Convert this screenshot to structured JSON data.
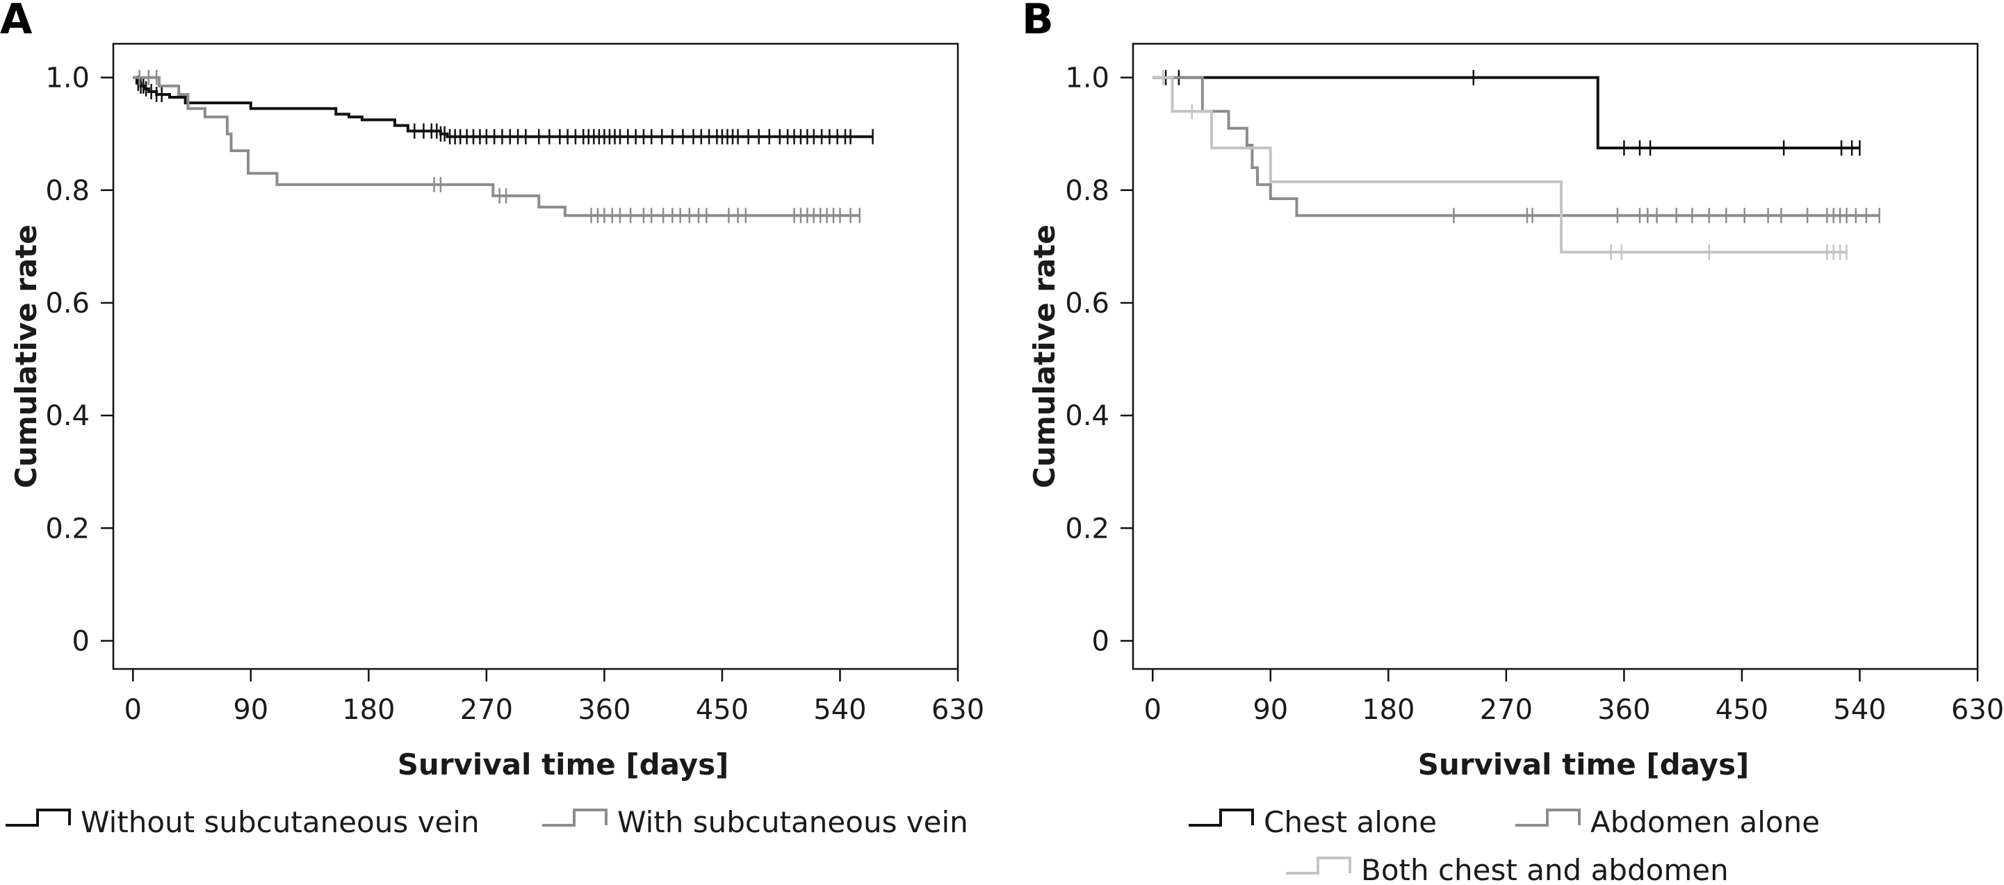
{
  "chart_data": [
    {
      "type": "line",
      "panel_label": "A",
      "xlabel": "Survival time [days]",
      "ylabel": "Cumulative rate",
      "xlim": [
        -15,
        630
      ],
      "ylim": [
        -0.05,
        1.06
      ],
      "xticks": [
        0,
        90,
        180,
        270,
        360,
        450,
        540,
        630
      ],
      "yticks": [
        0,
        0.2,
        0.4,
        0.6,
        0.8,
        1.0
      ],
      "ytick_labels": [
        "0",
        "0.2",
        "0.4",
        "0.6",
        "0.8",
        "1.0"
      ],
      "grid": false,
      "legend": "bottom",
      "series": [
        {
          "name": "Without subcutaneous vein",
          "color": "#111111",
          "steps": [
            [
              0,
              1.0
            ],
            [
              3,
              0.99
            ],
            [
              6,
              0.985
            ],
            [
              9,
              0.98
            ],
            [
              12,
              0.975
            ],
            [
              18,
              0.97
            ],
            [
              28,
              0.965
            ],
            [
              40,
              0.955
            ],
            [
              90,
              0.945
            ],
            [
              155,
              0.935
            ],
            [
              165,
              0.93
            ],
            [
              175,
              0.925
            ],
            [
              200,
              0.915
            ],
            [
              210,
              0.905
            ],
            [
              235,
              0.9
            ],
            [
              240,
              0.895
            ],
            [
              565,
              0.895
            ]
          ],
          "censors": [
            4,
            6,
            8,
            10,
            14,
            18,
            22,
            215,
            222,
            228,
            232,
            235,
            238,
            242,
            246,
            250,
            255,
            260,
            265,
            270,
            276,
            282,
            288,
            294,
            300,
            310,
            318,
            326,
            332,
            338,
            344,
            348,
            352,
            356,
            360,
            364,
            368,
            372,
            378,
            384,
            390,
            396,
            404,
            412,
            420,
            428,
            434,
            440,
            446,
            450,
            454,
            458,
            462,
            470,
            478,
            486,
            494,
            500,
            505,
            510,
            515,
            520,
            526,
            532,
            538,
            544,
            548,
            565
          ]
        },
        {
          "name": "With subcutaneous vein",
          "color": "#8c8c8c",
          "steps": [
            [
              0,
              1.0
            ],
            [
              20,
              0.985
            ],
            [
              35,
              0.97
            ],
            [
              42,
              0.945
            ],
            [
              55,
              0.93
            ],
            [
              72,
              0.9
            ],
            [
              75,
              0.87
            ],
            [
              88,
              0.83
            ],
            [
              110,
              0.81
            ],
            [
              275,
              0.79
            ],
            [
              310,
              0.77
            ],
            [
              330,
              0.755
            ],
            [
              555,
              0.755
            ]
          ],
          "censors": [
            5,
            12,
            18,
            230,
            235,
            280,
            285,
            350,
            355,
            360,
            366,
            372,
            380,
            390,
            396,
            405,
            412,
            418,
            425,
            432,
            438,
            455,
            462,
            468,
            505,
            510,
            515,
            520,
            525,
            530,
            535,
            540,
            548,
            555
          ]
        }
      ]
    },
    {
      "type": "line",
      "panel_label": "B",
      "xlabel": "Survival time [days]",
      "ylabel": "Cumulative rate",
      "xlim": [
        -15,
        630
      ],
      "ylim": [
        -0.05,
        1.06
      ],
      "xticks": [
        0,
        90,
        180,
        270,
        360,
        450,
        540,
        630
      ],
      "yticks": [
        0,
        0.2,
        0.4,
        0.6,
        0.8,
        1.0
      ],
      "ytick_labels": [
        "0",
        "0.2",
        "0.4",
        "0.6",
        "0.8",
        "1.0"
      ],
      "grid": false,
      "legend": "bottom",
      "series": [
        {
          "name": "Chest alone",
          "color": "#111111",
          "steps": [
            [
              0,
              1.0
            ],
            [
              340,
              1.0
            ],
            [
              340,
              0.875
            ],
            [
              540,
              0.875
            ]
          ],
          "censors": [
            10,
            20,
            245,
            360,
            372,
            380,
            482,
            526,
            534,
            540
          ]
        },
        {
          "name": "Abdomen alone",
          "color": "#8c8c8c",
          "steps": [
            [
              0,
              1.0
            ],
            [
              38,
              0.94
            ],
            [
              58,
              0.91
            ],
            [
              72,
              0.88
            ],
            [
              76,
              0.84
            ],
            [
              80,
              0.81
            ],
            [
              90,
              0.785
            ],
            [
              110,
              0.755
            ],
            [
              555,
              0.755
            ]
          ],
          "censors": [
            230,
            286,
            290,
            355,
            372,
            378,
            385,
            400,
            412,
            425,
            438,
            452,
            470,
            480,
            500,
            515,
            520,
            525,
            530,
            537,
            545,
            555
          ]
        },
        {
          "name": "Both chest and abdomen",
          "color": "#c4c4c4",
          "steps": [
            [
              0,
              1.0
            ],
            [
              15,
              0.94
            ],
            [
              45,
              0.875
            ],
            [
              90,
              0.815
            ],
            [
              285,
              0.815
            ],
            [
              312,
              0.69
            ],
            [
              530,
              0.69
            ]
          ],
          "censors": [
            8,
            30,
            350,
            358,
            425,
            515,
            520,
            525,
            530
          ]
        }
      ]
    }
  ]
}
